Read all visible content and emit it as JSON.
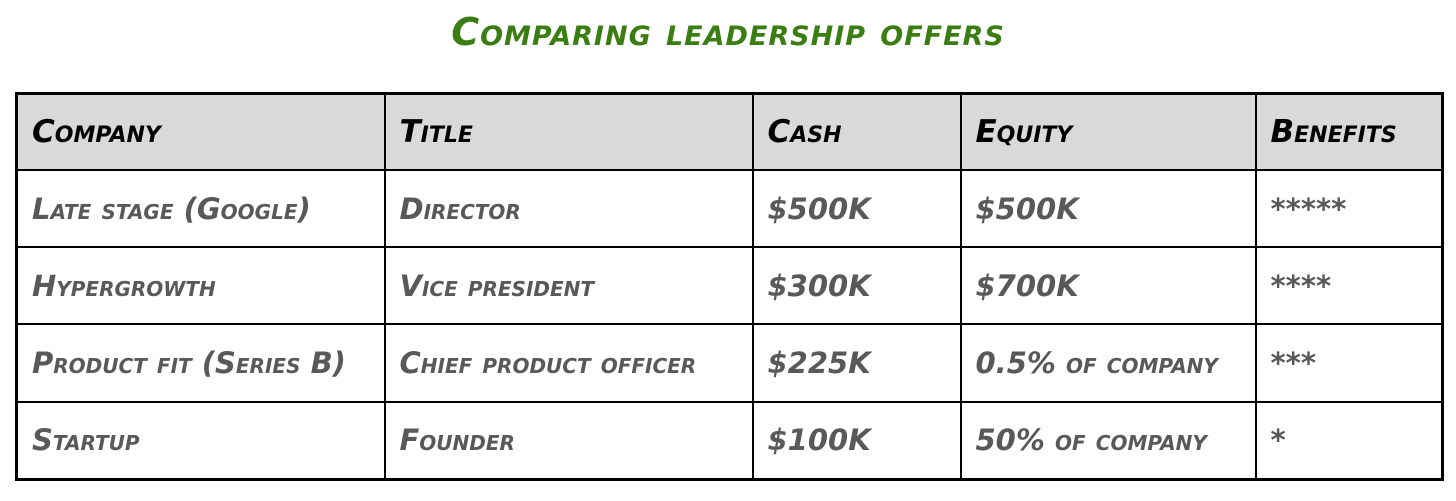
{
  "chart_data": {
    "type": "table",
    "title": "Comparing leadership offers",
    "columns": [
      "Company",
      "Title",
      "Cash",
      "Equity",
      "Benefits"
    ],
    "rows": [
      [
        "Late stage (Google)",
        "Director",
        "$500K",
        "$500K",
        "*****"
      ],
      [
        "Hypergrowth",
        "Vice president",
        "$300K",
        "$700K",
        "****"
      ],
      [
        "Product fit (Series B)",
        "Chief product officer",
        "$225K",
        "0.5% of company",
        "***"
      ],
      [
        "Startup",
        "Founder",
        "$100K",
        "50% of company",
        "*"
      ]
    ]
  }
}
